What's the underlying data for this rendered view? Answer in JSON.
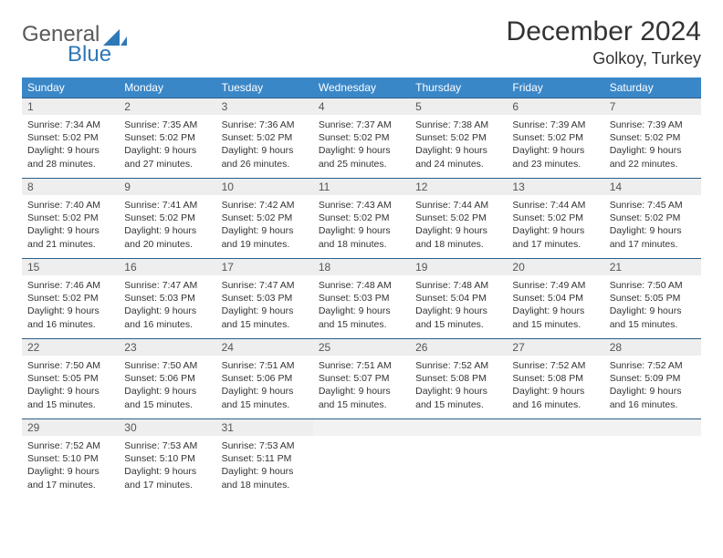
{
  "brand": {
    "general": "General",
    "blue": "Blue",
    "sail_color": "#2f78b7",
    "text_gray": "#5a5a5a"
  },
  "title": "December 2024",
  "location": "Golkoy, Turkey",
  "colors": {
    "header_bg": "#3a87c8",
    "header_text": "#ffffff",
    "daybar_bg": "#eeeeee",
    "daybar_border": "#2a5f8a",
    "body_text": "#333333"
  },
  "weekdays": [
    "Sunday",
    "Monday",
    "Tuesday",
    "Wednesday",
    "Thursday",
    "Friday",
    "Saturday"
  ],
  "weeks": [
    [
      {
        "n": "1",
        "sr": "7:34 AM",
        "ss": "5:02 PM",
        "dh": "9",
        "dm": "28"
      },
      {
        "n": "2",
        "sr": "7:35 AM",
        "ss": "5:02 PM",
        "dh": "9",
        "dm": "27"
      },
      {
        "n": "3",
        "sr": "7:36 AM",
        "ss": "5:02 PM",
        "dh": "9",
        "dm": "26"
      },
      {
        "n": "4",
        "sr": "7:37 AM",
        "ss": "5:02 PM",
        "dh": "9",
        "dm": "25"
      },
      {
        "n": "5",
        "sr": "7:38 AM",
        "ss": "5:02 PM",
        "dh": "9",
        "dm": "24"
      },
      {
        "n": "6",
        "sr": "7:39 AM",
        "ss": "5:02 PM",
        "dh": "9",
        "dm": "23"
      },
      {
        "n": "7",
        "sr": "7:39 AM",
        "ss": "5:02 PM",
        "dh": "9",
        "dm": "22"
      }
    ],
    [
      {
        "n": "8",
        "sr": "7:40 AM",
        "ss": "5:02 PM",
        "dh": "9",
        "dm": "21"
      },
      {
        "n": "9",
        "sr": "7:41 AM",
        "ss": "5:02 PM",
        "dh": "9",
        "dm": "20"
      },
      {
        "n": "10",
        "sr": "7:42 AM",
        "ss": "5:02 PM",
        "dh": "9",
        "dm": "19"
      },
      {
        "n": "11",
        "sr": "7:43 AM",
        "ss": "5:02 PM",
        "dh": "9",
        "dm": "18"
      },
      {
        "n": "12",
        "sr": "7:44 AM",
        "ss": "5:02 PM",
        "dh": "9",
        "dm": "18"
      },
      {
        "n": "13",
        "sr": "7:44 AM",
        "ss": "5:02 PM",
        "dh": "9",
        "dm": "17"
      },
      {
        "n": "14",
        "sr": "7:45 AM",
        "ss": "5:02 PM",
        "dh": "9",
        "dm": "17"
      }
    ],
    [
      {
        "n": "15",
        "sr": "7:46 AM",
        "ss": "5:02 PM",
        "dh": "9",
        "dm": "16"
      },
      {
        "n": "16",
        "sr": "7:47 AM",
        "ss": "5:03 PM",
        "dh": "9",
        "dm": "16"
      },
      {
        "n": "17",
        "sr": "7:47 AM",
        "ss": "5:03 PM",
        "dh": "9",
        "dm": "15"
      },
      {
        "n": "18",
        "sr": "7:48 AM",
        "ss": "5:03 PM",
        "dh": "9",
        "dm": "15"
      },
      {
        "n": "19",
        "sr": "7:48 AM",
        "ss": "5:04 PM",
        "dh": "9",
        "dm": "15"
      },
      {
        "n": "20",
        "sr": "7:49 AM",
        "ss": "5:04 PM",
        "dh": "9",
        "dm": "15"
      },
      {
        "n": "21",
        "sr": "7:50 AM",
        "ss": "5:05 PM",
        "dh": "9",
        "dm": "15"
      }
    ],
    [
      {
        "n": "22",
        "sr": "7:50 AM",
        "ss": "5:05 PM",
        "dh": "9",
        "dm": "15"
      },
      {
        "n": "23",
        "sr": "7:50 AM",
        "ss": "5:06 PM",
        "dh": "9",
        "dm": "15"
      },
      {
        "n": "24",
        "sr": "7:51 AM",
        "ss": "5:06 PM",
        "dh": "9",
        "dm": "15"
      },
      {
        "n": "25",
        "sr": "7:51 AM",
        "ss": "5:07 PM",
        "dh": "9",
        "dm": "15"
      },
      {
        "n": "26",
        "sr": "7:52 AM",
        "ss": "5:08 PM",
        "dh": "9",
        "dm": "15"
      },
      {
        "n": "27",
        "sr": "7:52 AM",
        "ss": "5:08 PM",
        "dh": "9",
        "dm": "16"
      },
      {
        "n": "28",
        "sr": "7:52 AM",
        "ss": "5:09 PM",
        "dh": "9",
        "dm": "16"
      }
    ],
    [
      {
        "n": "29",
        "sr": "7:52 AM",
        "ss": "5:10 PM",
        "dh": "9",
        "dm": "17"
      },
      {
        "n": "30",
        "sr": "7:53 AM",
        "ss": "5:10 PM",
        "dh": "9",
        "dm": "17"
      },
      {
        "n": "31",
        "sr": "7:53 AM",
        "ss": "5:11 PM",
        "dh": "9",
        "dm": "18"
      },
      null,
      null,
      null,
      null
    ]
  ],
  "labels": {
    "sunrise": "Sunrise:",
    "sunset": "Sunset:",
    "daylight": "Daylight:",
    "hours": "hours",
    "and": "and",
    "minutes": "minutes."
  }
}
